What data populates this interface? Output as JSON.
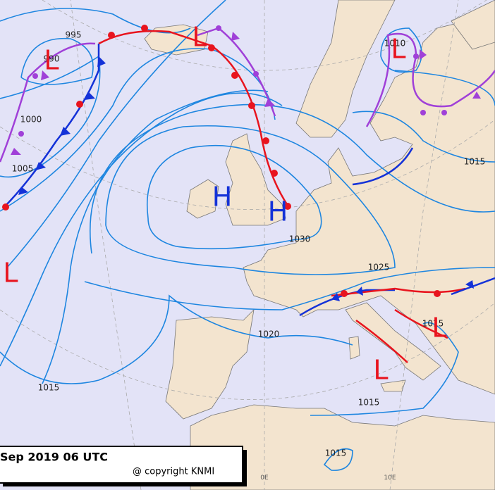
{
  "caption": {
    "date": "Sep 2019 06 UTC",
    "copyright": "@ copyright KNMI"
  },
  "meridian_labels": [
    "0E",
    "10E"
  ],
  "isobar_labels": [
    "995",
    "990",
    "1000",
    "1005",
    "1010",
    "1015",
    "1030",
    "1025",
    "1020",
    "1015",
    "1015",
    "1015",
    "1015"
  ],
  "pressure_centers": [
    {
      "label": "L"
    },
    {
      "label": "L"
    },
    {
      "label": "L"
    },
    {
      "label": "L"
    },
    {
      "label": "H"
    },
    {
      "label": "H"
    },
    {
      "label": "L"
    },
    {
      "label": "L"
    }
  ]
}
